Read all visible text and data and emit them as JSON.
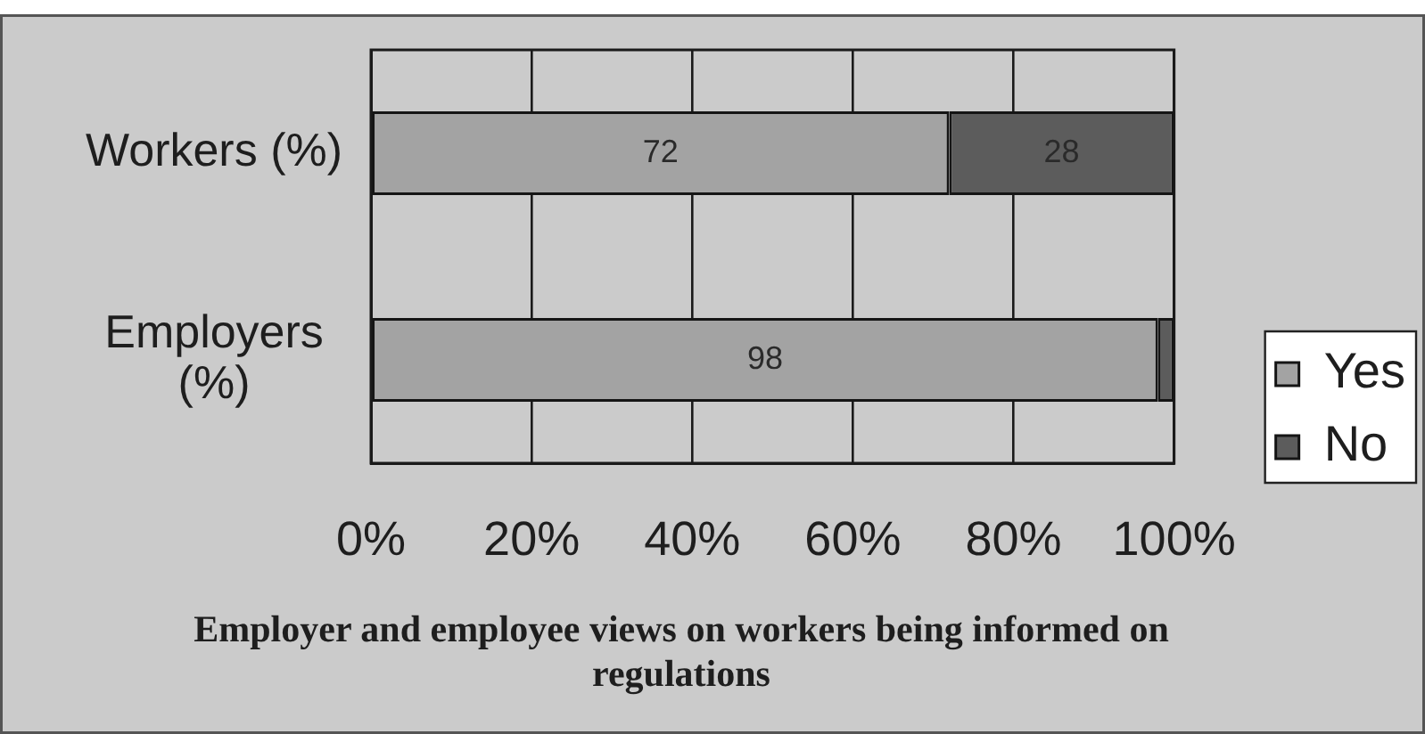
{
  "chart_data": {
    "type": "bar",
    "orientation": "horizontal",
    "stacked": true,
    "title": "Employer and employee views on workers being informed on regulations",
    "categories": [
      "Workers (%)",
      "Employers (%)"
    ],
    "series": [
      {
        "name": "Yes",
        "color": "#a3a3a3",
        "values": [
          72,
          98
        ],
        "value_labels": [
          "72",
          "98"
        ]
      },
      {
        "name": "No",
        "color": "#5c5c5c",
        "values": [
          28,
          2
        ],
        "value_labels": [
          "28",
          null
        ]
      }
    ],
    "xlim": [
      0,
      100
    ],
    "xticks": [
      {
        "value": 0,
        "label": "0%"
      },
      {
        "value": 20,
        "label": "20%"
      },
      {
        "value": 40,
        "label": "40%"
      },
      {
        "value": 60,
        "label": "60%"
      },
      {
        "value": 80,
        "label": "80%"
      },
      {
        "value": 100,
        "label": "100%"
      }
    ],
    "grid": "x",
    "legend": "right"
  }
}
